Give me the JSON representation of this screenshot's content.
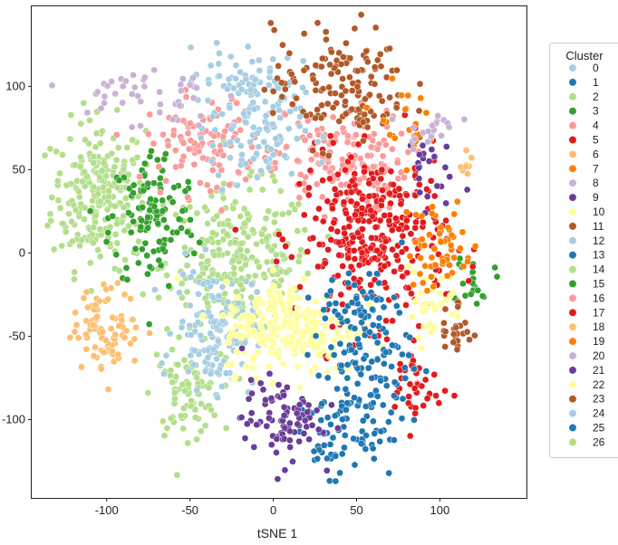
{
  "chart_data": {
    "type": "scatter",
    "title": "",
    "xlabel": "tSNE 1",
    "ylabel": "",
    "xlim": [
      -145,
      152
    ],
    "ylim": [
      -147,
      148
    ],
    "xticks": [
      -100,
      -50,
      0,
      50,
      100
    ],
    "yticks": [
      -100,
      -50,
      0,
      50,
      100
    ],
    "grid": false,
    "legend": {
      "title": "Cluster",
      "placement": "right-outside",
      "entries": [
        "0",
        "1",
        "2",
        "3",
        "4",
        "5",
        "6",
        "7",
        "8",
        "9",
        "10",
        "11",
        "12",
        "13",
        "14",
        "15",
        "16",
        "17",
        "18",
        "19",
        "20",
        "21",
        "22",
        "23",
        "24",
        "25",
        "26"
      ]
    },
    "palette": {
      "0": "#a6cee3",
      "1": "#1f78b4",
      "2": "#b2df8a",
      "3": "#33a02c",
      "4": "#fb9a99",
      "5": "#e31a1c",
      "6": "#fdbf6f",
      "7": "#ff7f00",
      "8": "#cab2d6",
      "9": "#6a3d9a",
      "10": "#ffff99",
      "11": "#b15928",
      "12": "#a6cee3",
      "13": "#1f78b4",
      "14": "#b2df8a",
      "15": "#33a02c",
      "16": "#fb9a99",
      "17": "#e31a1c",
      "18": "#fdbf6f",
      "19": "#ff7f00",
      "20": "#cab2d6",
      "21": "#6a3d9a",
      "22": "#ffff99",
      "23": "#b15928",
      "24": "#a6cee3",
      "25": "#1f78b4",
      "26": "#b2df8a"
    },
    "clusters": [
      {
        "label": "2",
        "x": -105,
        "y": 35,
        "sx": 14,
        "sy": 22,
        "n": 240
      },
      {
        "label": "14",
        "x": -20,
        "y": -5,
        "sx": 22,
        "sy": 22,
        "n": 260
      },
      {
        "label": "26",
        "x": -52,
        "y": -85,
        "sx": 10,
        "sy": 12,
        "n": 80
      },
      {
        "label": "15",
        "x": -72,
        "y": 20,
        "sx": 13,
        "sy": 22,
        "n": 120
      },
      {
        "label": "3",
        "x": 120,
        "y": -15,
        "sx": 6,
        "sy": 8,
        "n": 25
      },
      {
        "label": "16",
        "x": 40,
        "y": 55,
        "sx": 20,
        "sy": 15,
        "n": 150
      },
      {
        "label": "4",
        "x": -40,
        "y": 65,
        "sx": 18,
        "sy": 15,
        "n": 110
      },
      {
        "label": "17",
        "x": 60,
        "y": 10,
        "sx": 22,
        "sy": 25,
        "n": 330
      },
      {
        "label": "5",
        "x": 85,
        "y": -80,
        "sx": 8,
        "sy": 14,
        "n": 40
      },
      {
        "label": "12",
        "x": -35,
        "y": -45,
        "sx": 12,
        "sy": 18,
        "n": 130
      },
      {
        "label": "24",
        "x": -10,
        "y": 75,
        "sx": 14,
        "sy": 20,
        "n": 120
      },
      {
        "label": "0",
        "x": -25,
        "y": 105,
        "sx": 10,
        "sy": 10,
        "n": 40
      },
      {
        "label": "22",
        "x": 10,
        "y": -45,
        "sx": 20,
        "sy": 14,
        "n": 230
      },
      {
        "label": "10",
        "x": 95,
        "y": -30,
        "sx": 10,
        "sy": 10,
        "n": 35
      },
      {
        "label": "25",
        "x": 55,
        "y": -70,
        "sx": 14,
        "sy": 28,
        "n": 150
      },
      {
        "label": "13",
        "x": 35,
        "y": -110,
        "sx": 10,
        "sy": 12,
        "n": 40
      },
      {
        "label": "21",
        "x": 5,
        "y": -100,
        "sx": 12,
        "sy": 12,
        "n": 90
      },
      {
        "label": "9",
        "x": 90,
        "y": 50,
        "sx": 8,
        "sy": 12,
        "n": 22
      },
      {
        "label": "11",
        "x": 40,
        "y": 100,
        "sx": 20,
        "sy": 18,
        "n": 150
      },
      {
        "label": "23",
        "x": 110,
        "y": -45,
        "sx": 5,
        "sy": 10,
        "n": 25
      },
      {
        "label": "18",
        "x": -100,
        "y": -45,
        "sx": 10,
        "sy": 12,
        "n": 90
      },
      {
        "label": "6",
        "x": 118,
        "y": 53,
        "sx": 4,
        "sy": 4,
        "n": 8
      },
      {
        "label": "19",
        "x": 100,
        "y": 5,
        "sx": 10,
        "sy": 14,
        "n": 55
      },
      {
        "label": "7",
        "x": 75,
        "y": 80,
        "sx": 8,
        "sy": 10,
        "n": 20
      },
      {
        "label": "8",
        "x": 95,
        "y": 75,
        "sx": 8,
        "sy": 6,
        "n": 20
      },
      {
        "label": "20",
        "x": -80,
        "y": 95,
        "sx": 22,
        "sy": 10,
        "n": 45
      },
      {
        "label": "1",
        "x": 50,
        "y": -30,
        "sx": 10,
        "sy": 10,
        "n": 30
      }
    ]
  }
}
